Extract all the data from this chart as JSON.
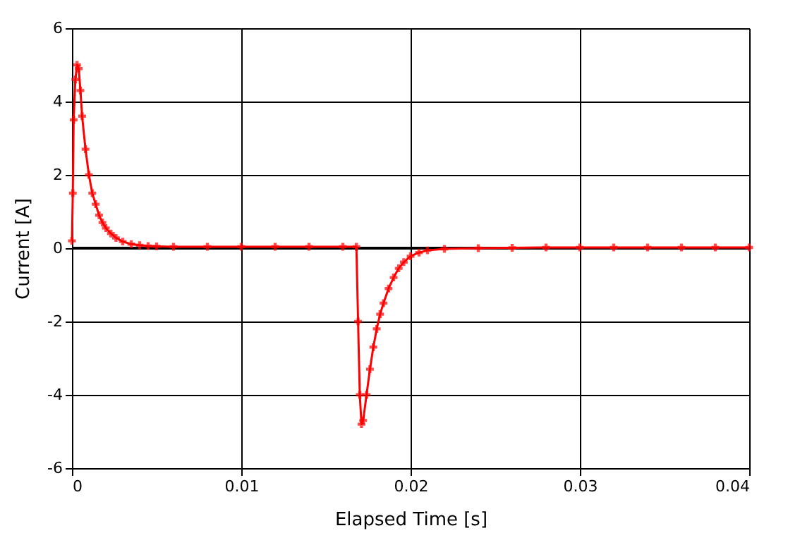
{
  "chart_data": {
    "type": "line",
    "xlabel": "Elapsed Time [s]",
    "ylabel": "Current [A]",
    "xlim": [
      0,
      0.04
    ],
    "xticks": [
      0,
      0.01,
      0.02,
      0.03,
      0.04
    ],
    "ylim": [
      -6,
      6
    ],
    "yticks": [
      -6,
      -4,
      -2,
      0,
      2,
      4,
      6
    ],
    "grid": true,
    "marker": "cross",
    "line_style": "solid",
    "ref_lines": [
      {
        "axis": "y",
        "value": 0,
        "color": "#000000"
      }
    ],
    "series": [
      {
        "color": "#ff0000",
        "x": [
          0,
          5e-05,
          0.0001,
          0.0002,
          0.0003,
          0.0004,
          0.0005,
          0.0006,
          0.0008,
          0.001,
          0.0012,
          0.0014,
          0.0016,
          0.0018,
          0.002,
          0.0023,
          0.0026,
          0.003,
          0.0035,
          0.004,
          0.0045,
          0.005,
          0.006,
          0.008,
          0.01,
          0.012,
          0.014,
          0.016,
          0.0168,
          0.0169,
          0.017,
          0.0171,
          0.0172,
          0.0174,
          0.0176,
          0.0178,
          0.018,
          0.0182,
          0.0184,
          0.0187,
          0.019,
          0.0193,
          0.0196,
          0.02,
          0.0205,
          0.021,
          0.022,
          0.024,
          0.026,
          0.028,
          0.03,
          0.032,
          0.034,
          0.036,
          0.038,
          0.04
        ],
        "values": [
          0.2,
          1.5,
          3.5,
          4.6,
          5.0,
          4.9,
          4.3,
          3.6,
          2.7,
          2.0,
          1.5,
          1.2,
          0.9,
          0.7,
          0.55,
          0.4,
          0.28,
          0.18,
          0.11,
          0.08,
          0.06,
          0.05,
          0.04,
          0.04,
          0.04,
          0.04,
          0.04,
          0.04,
          0.04,
          -2.0,
          -4.0,
          -4.8,
          -4.7,
          -4.0,
          -3.3,
          -2.7,
          -2.2,
          -1.8,
          -1.5,
          -1.1,
          -0.8,
          -0.55,
          -0.38,
          -0.22,
          -0.12,
          -0.06,
          -0.02,
          0.0,
          0.01,
          0.02,
          0.02,
          0.02,
          0.02,
          0.02,
          0.02,
          0.02
        ]
      }
    ]
  }
}
